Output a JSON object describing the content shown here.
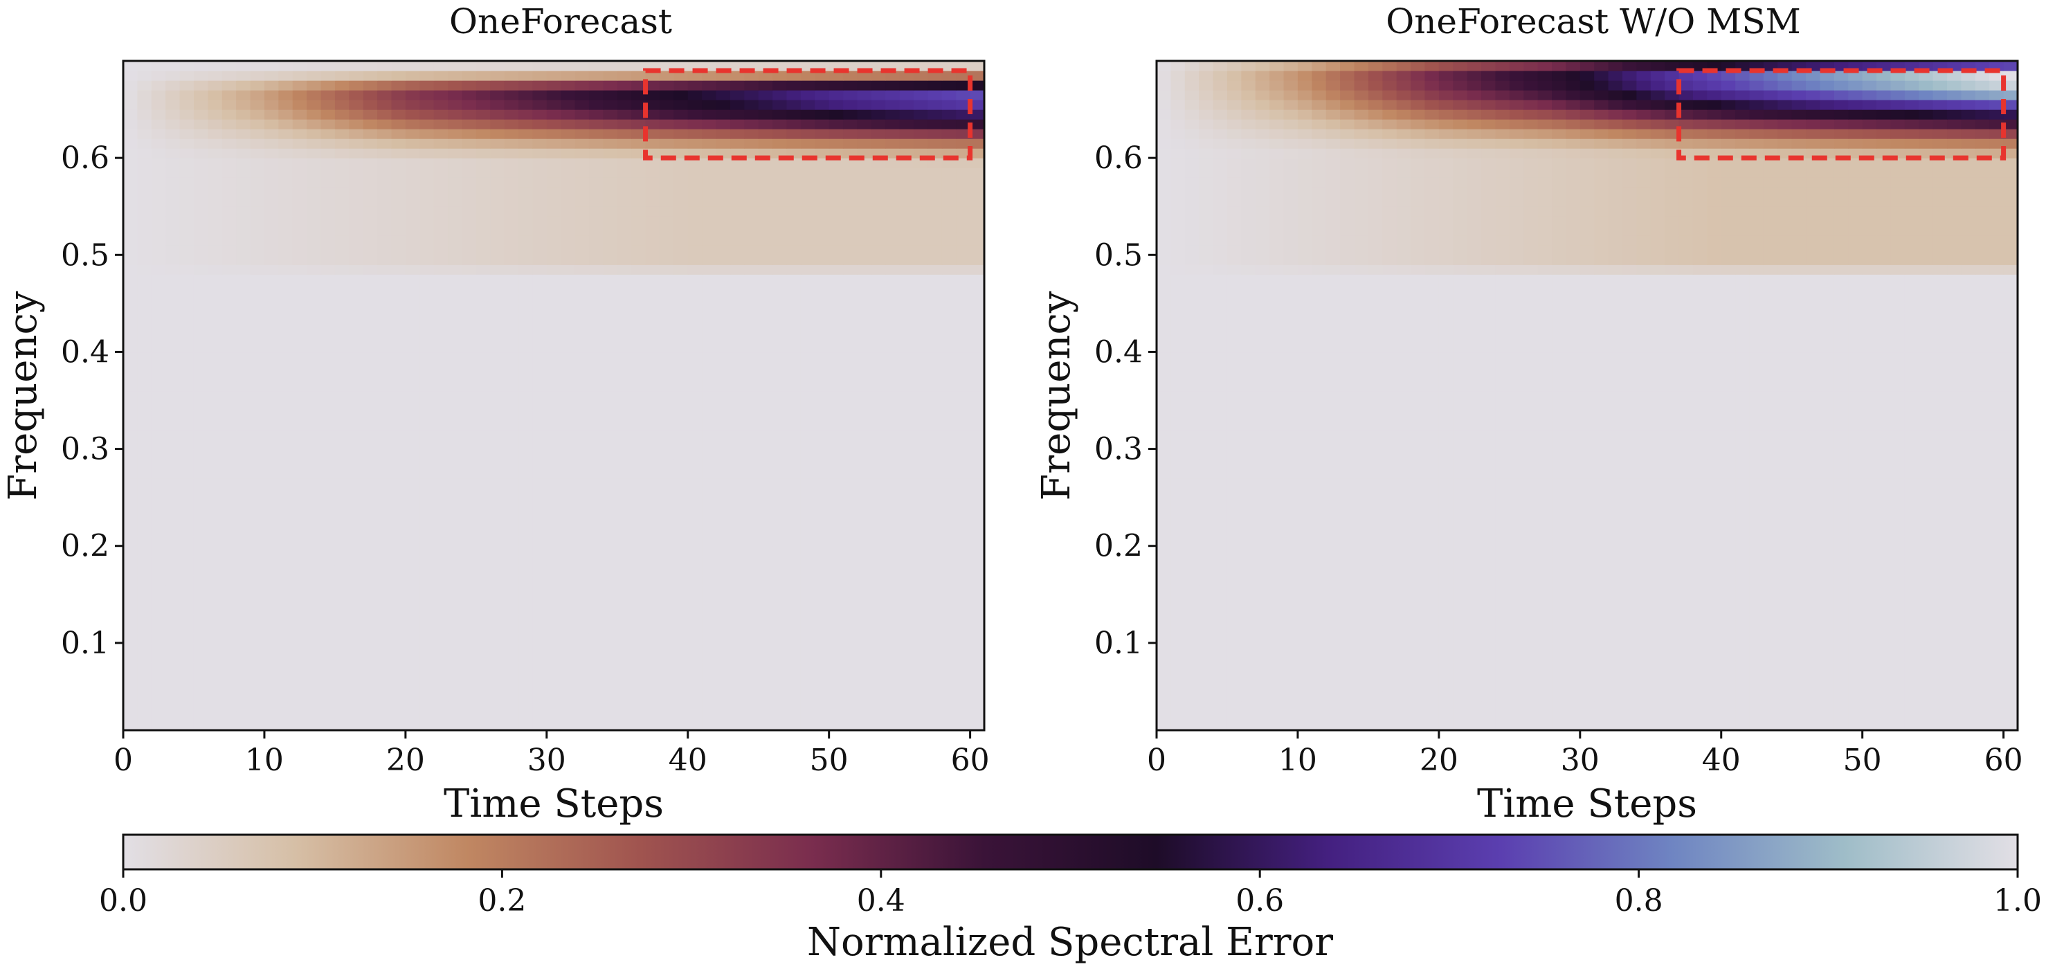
{
  "chart_data": [
    {
      "type": "heatmap",
      "title": "OneForecast",
      "xlabel": "Time Steps",
      "ylabel": "Frequency",
      "xlim": [
        0,
        61
      ],
      "ylim": [
        0.01,
        0.7
      ],
      "xticks": [
        0,
        10,
        20,
        30,
        40,
        50,
        60
      ],
      "yticks": [
        0.1,
        0.2,
        0.3,
        0.4,
        0.5,
        0.6
      ],
      "grid": false,
      "highlight_box": {
        "x": [
          37,
          60
        ],
        "y": [
          0.6,
          0.69
        ],
        "color": "#e8342e",
        "style": "dashed"
      },
      "value_description": "normalized spectral error grows with time step and frequency; near 0 below frequency 0.48",
      "peak_row_values": {
        "frequency": 0.665,
        "time_steps": [
          0,
          10,
          20,
          30,
          37,
          45,
          50,
          55,
          60
        ],
        "values": [
          0.0,
          0.14,
          0.33,
          0.44,
          0.52,
          0.6,
          0.66,
          0.7,
          0.74
        ]
      }
    },
    {
      "type": "heatmap",
      "title": "OneForecast W/O MSM",
      "xlabel": "Time Steps",
      "ylabel": "Frequency",
      "xlim": [
        0,
        61
      ],
      "ylim": [
        0.01,
        0.7
      ],
      "xticks": [
        0,
        10,
        20,
        30,
        40,
        50,
        60
      ],
      "yticks": [
        0.1,
        0.2,
        0.3,
        0.4,
        0.5,
        0.6
      ],
      "grid": false,
      "highlight_box": {
        "x": [
          37,
          60
        ],
        "y": [
          0.6,
          0.69
        ],
        "color": "#e8342e",
        "style": "dashed"
      },
      "value_description": "stronger spectral error than OneForecast; top band reaches near 1.0 at late time steps",
      "peak_row_values": {
        "frequency": 0.685,
        "time_steps": [
          0,
          10,
          20,
          28,
          37,
          45,
          50,
          55,
          60
        ],
        "values": [
          0.0,
          0.16,
          0.38,
          0.5,
          0.7,
          0.82,
          0.88,
          0.94,
          1.0
        ]
      }
    }
  ],
  "colorbar": {
    "label": "Normalized Spectral Error",
    "range": [
      0.0,
      1.0
    ],
    "ticks": [
      "0.0",
      "0.2",
      "0.4",
      "0.6",
      "0.8",
      "1.0"
    ],
    "colormap": "twilight",
    "stops": [
      "#e2dfe5",
      "#d6bfa6",
      "#c08762",
      "#a0544f",
      "#7a2d4e",
      "#3a1338",
      "#1e0c28",
      "#442080",
      "#5b3fb0",
      "#6f85c2",
      "#9fbdc8",
      "#e2dfe5"
    ]
  }
}
